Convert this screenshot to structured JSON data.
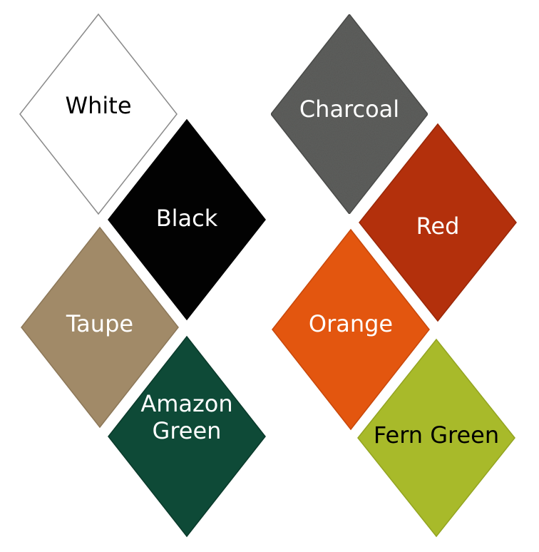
{
  "swatches": [
    {
      "label": [
        "White"
      ],
      "fill": "#ffffff",
      "stroke": "#8a8a8a",
      "text_color": "#000000",
      "textured": false
    },
    {
      "label": [
        "Black"
      ],
      "fill": "#020202",
      "stroke": "#000000",
      "text_color": "#ffffff",
      "textured": false
    },
    {
      "label": [
        "Taupe"
      ],
      "fill": "#a18a68",
      "stroke": "#8c7758",
      "text_color": "#ffffff",
      "textured": false
    },
    {
      "label": [
        "Amazon",
        "Green"
      ],
      "fill": "#0e4a37",
      "stroke": "#0a3a2b",
      "text_color": "#ffffff",
      "textured": false
    },
    {
      "label": [
        "Charcoal"
      ],
      "fill": "#5e5f5d",
      "stroke": "#4d4e4c",
      "text_color": "#ffffff",
      "textured": true
    },
    {
      "label": [
        "Red"
      ],
      "fill": "#b3300c",
      "stroke": "#9a2808",
      "text_color": "#ffffff",
      "textured": false
    },
    {
      "label": [
        "Orange"
      ],
      "fill": "#e3560f",
      "stroke": "#c8480b",
      "text_color": "#ffffff",
      "textured": false
    },
    {
      "label": [
        "Fern Green"
      ],
      "fill": "#a8ba2a",
      "stroke": "#93a421",
      "text_color": "#000000",
      "textured": false
    }
  ]
}
